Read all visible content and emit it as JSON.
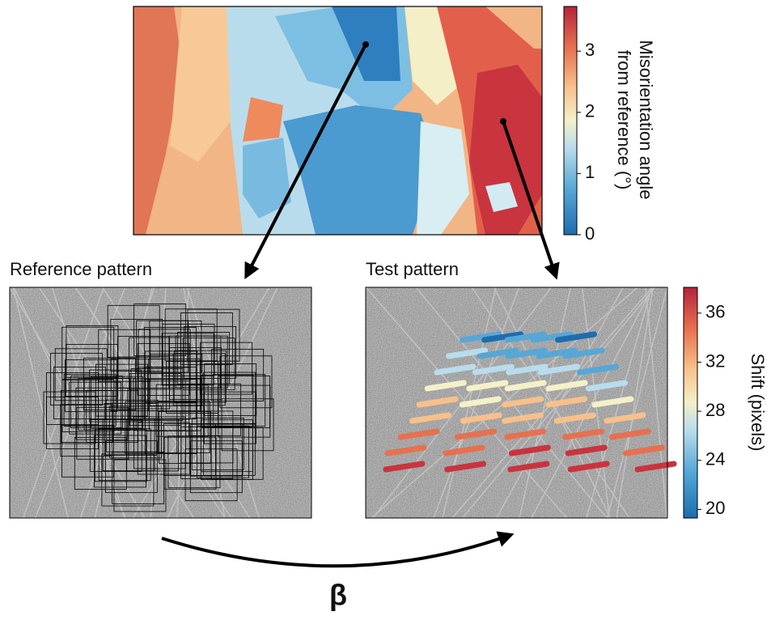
{
  "map_colorbar": {
    "label_lines": [
      "Misorientation angle",
      "from reference (°)"
    ],
    "lim": [
      0,
      3.73
    ],
    "ticks": [
      0,
      1,
      2,
      3
    ]
  },
  "shift_colorbar": {
    "label": "Shift (pixels)",
    "lim": [
      19.3,
      38.1
    ],
    "ticks": [
      20,
      24,
      28,
      32,
      36
    ]
  },
  "reference_label": "Reference pattern",
  "test_label": "Test pattern",
  "transform_label": "β"
}
